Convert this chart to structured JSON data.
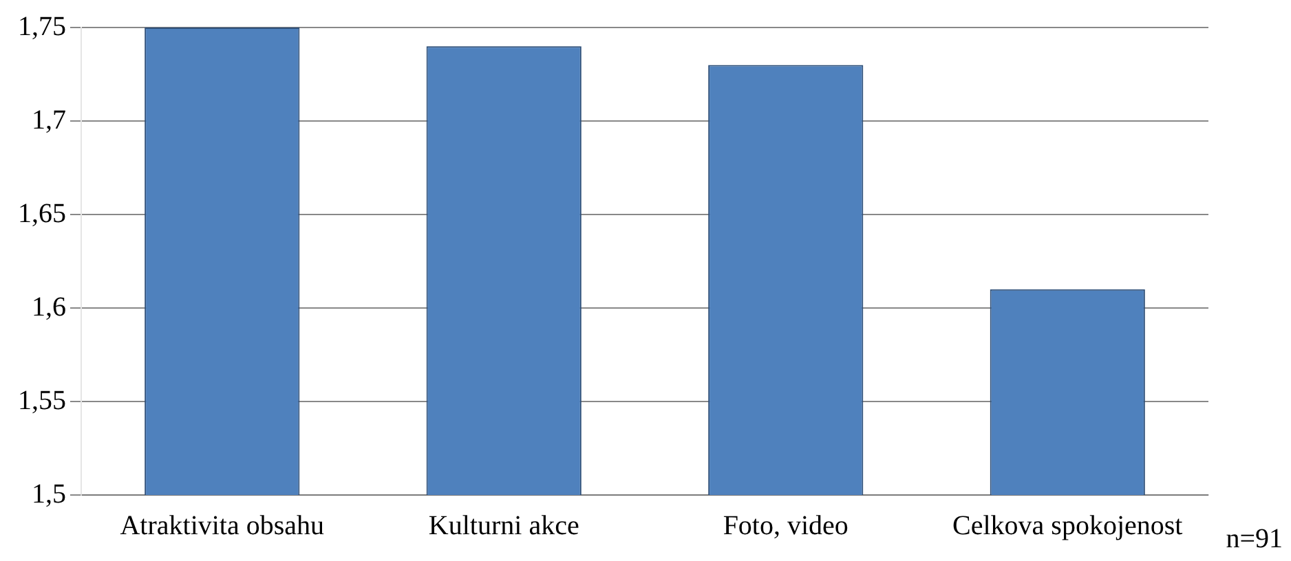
{
  "chart_data": {
    "type": "bar",
    "categories": [
      "Atraktivita obsahu",
      "Kulturni akce",
      "Foto, video",
      "Celkova spokojenost"
    ],
    "values": [
      1.75,
      1.74,
      1.73,
      1.61
    ],
    "color": "#4f81bd",
    "ylim": [
      1.5,
      1.75
    ],
    "yticks": [
      {
        "value": 1.5,
        "label": "1,5"
      },
      {
        "value": 1.55,
        "label": "1,55"
      },
      {
        "value": 1.6,
        "label": "1,6"
      },
      {
        "value": 1.65,
        "label": "1,65"
      },
      {
        "value": 1.7,
        "label": "1,7"
      },
      {
        "value": 1.75,
        "label": "1,75"
      }
    ],
    "grid": "y",
    "annotations": [
      "n=91"
    ]
  }
}
